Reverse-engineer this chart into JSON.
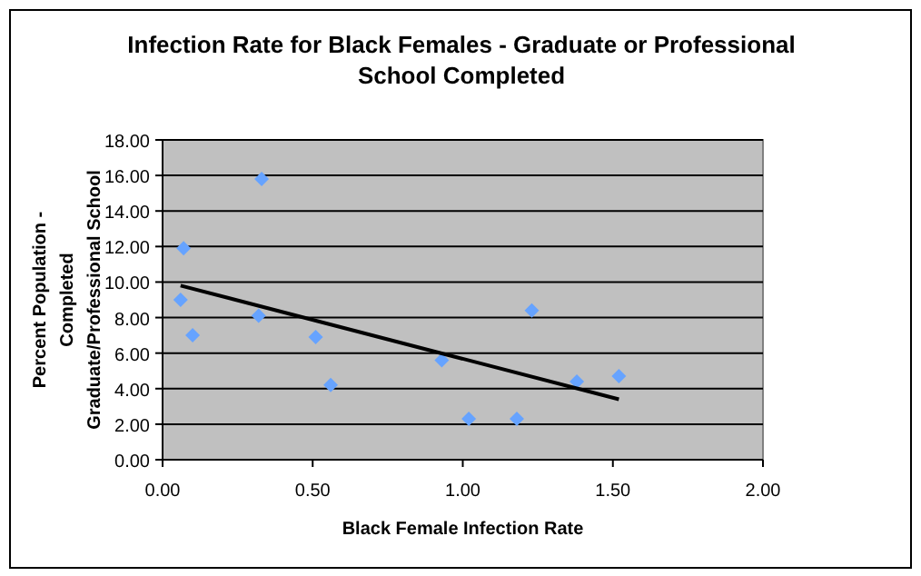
{
  "chart_data": {
    "type": "scatter",
    "title": "Infection Rate for Black Females - Graduate or Professional School Completed",
    "xlabel": "Black Female Infection Rate",
    "ylabel": "Percent Population - Completed Graduate/Professional School",
    "xlim": [
      0,
      2
    ],
    "xticks": [
      {
        "value": 0,
        "label": "0.00"
      },
      {
        "value": 0.5,
        "label": "0.50"
      },
      {
        "value": 1,
        "label": "1.00"
      },
      {
        "value": 1.5,
        "label": "1.50"
      },
      {
        "value": 2,
        "label": "2.00"
      }
    ],
    "ylim": [
      0,
      18
    ],
    "yticks": [
      {
        "value": 0,
        "label": "0.00"
      },
      {
        "value": 2,
        "label": "2.00"
      },
      {
        "value": 4,
        "label": "4.00"
      },
      {
        "value": 6,
        "label": "6.00"
      },
      {
        "value": 8,
        "label": "8.00"
      },
      {
        "value": 10,
        "label": "10.00"
      },
      {
        "value": 12,
        "label": "12.00"
      },
      {
        "value": 14,
        "label": "14.00"
      },
      {
        "value": 16,
        "label": "16.00"
      },
      {
        "value": 18,
        "label": "18.00"
      }
    ],
    "grid": "y",
    "marker": "diamond",
    "series": [
      {
        "color": "#66a3ff",
        "x": [
          0.06,
          0.07,
          0.1,
          0.33,
          0.32,
          0.51,
          0.56,
          0.93,
          1.02,
          1.18,
          1.23,
          1.38,
          1.52
        ],
        "values": [
          9.0,
          11.9,
          7.0,
          15.8,
          8.1,
          6.9,
          4.2,
          5.6,
          2.3,
          2.3,
          8.4,
          4.4,
          4.7
        ]
      },
      {
        "type": "line",
        "color": "#000000",
        "marker": "none",
        "x": [
          0.06,
          1.52
        ],
        "values": [
          9.8,
          3.4
        ]
      }
    ]
  }
}
